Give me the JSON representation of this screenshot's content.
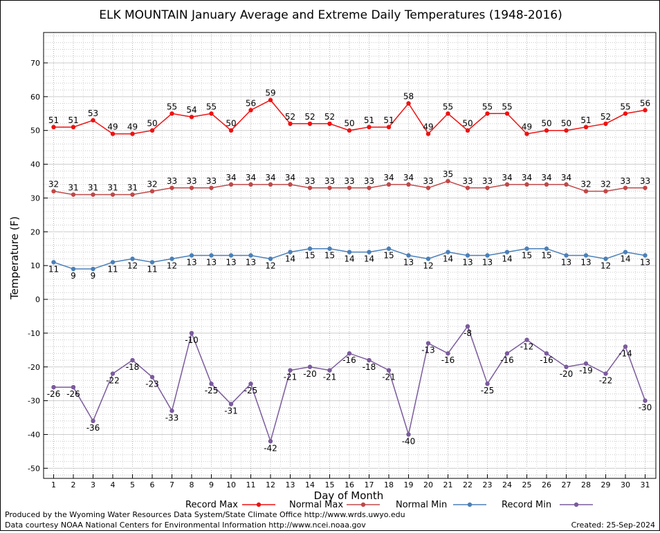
{
  "chart_data": {
    "type": "line",
    "title": "ELK MOUNTAIN January Average and Extreme Daily Temperatures (1948-2016)",
    "xlabel": "Day of Month",
    "ylabel": "Temperature (F)",
    "x": [
      1,
      2,
      3,
      4,
      5,
      6,
      7,
      8,
      9,
      10,
      11,
      12,
      13,
      14,
      15,
      16,
      17,
      18,
      19,
      20,
      21,
      22,
      23,
      24,
      25,
      26,
      27,
      28,
      29,
      30,
      31
    ],
    "ylim": [
      -53,
      79
    ],
    "yticks": [
      -50,
      -40,
      -30,
      -20,
      -10,
      0,
      10,
      20,
      30,
      40,
      50,
      60,
      70
    ],
    "grid": true,
    "legend_position": "bottom",
    "series": [
      {
        "name": "Record Max",
        "color": "#ee1111",
        "label_pos": "above",
        "values": [
          51,
          51,
          53,
          49,
          49,
          50,
          55,
          54,
          55,
          50,
          56,
          59,
          52,
          52,
          52,
          50,
          51,
          51,
          58,
          49,
          55,
          50,
          55,
          55,
          49,
          50,
          50,
          51,
          52,
          55,
          56
        ]
      },
      {
        "name": "Normal Max",
        "color": "#c04848",
        "label_pos": "above",
        "values": [
          32,
          31,
          31,
          31,
          31,
          32,
          33,
          33,
          33,
          34,
          34,
          34,
          34,
          33,
          33,
          33,
          33,
          34,
          34,
          33,
          35,
          33,
          33,
          34,
          34,
          34,
          34,
          32,
          32,
          33,
          33
        ]
      },
      {
        "name": "Normal Min",
        "color": "#4a7fb8",
        "label_pos": "below",
        "values": [
          11,
          9,
          9,
          11,
          12,
          11,
          12,
          13,
          13,
          13,
          13,
          12,
          14,
          15,
          15,
          14,
          14,
          15,
          13,
          12,
          14,
          13,
          13,
          14,
          15,
          15,
          13,
          13,
          12,
          14,
          13
        ]
      },
      {
        "name": "Record Min",
        "color": "#7a5a9c",
        "label_pos": "below",
        "values": [
          -26,
          -26,
          -36,
          -22,
          -18,
          -23,
          -33,
          -10,
          -25,
          -31,
          -25,
          -42,
          -21,
          -20,
          -21,
          -16,
          -18,
          -21,
          -40,
          -13,
          -16,
          -8,
          -25,
          -16,
          -12,
          -16,
          -20,
          -19,
          -22,
          -14,
          -30
        ]
      }
    ]
  },
  "footer": {
    "produced_by": "Produced by the Wyoming Water Resources Data System/State Climate Office http://www.wrds.uwyo.edu",
    "data_courtesy": "Data courtesy NOAA National Centers for Environmental Information http://www.ncei.noaa.gov",
    "created": "Created:  25-Sep-2024"
  }
}
